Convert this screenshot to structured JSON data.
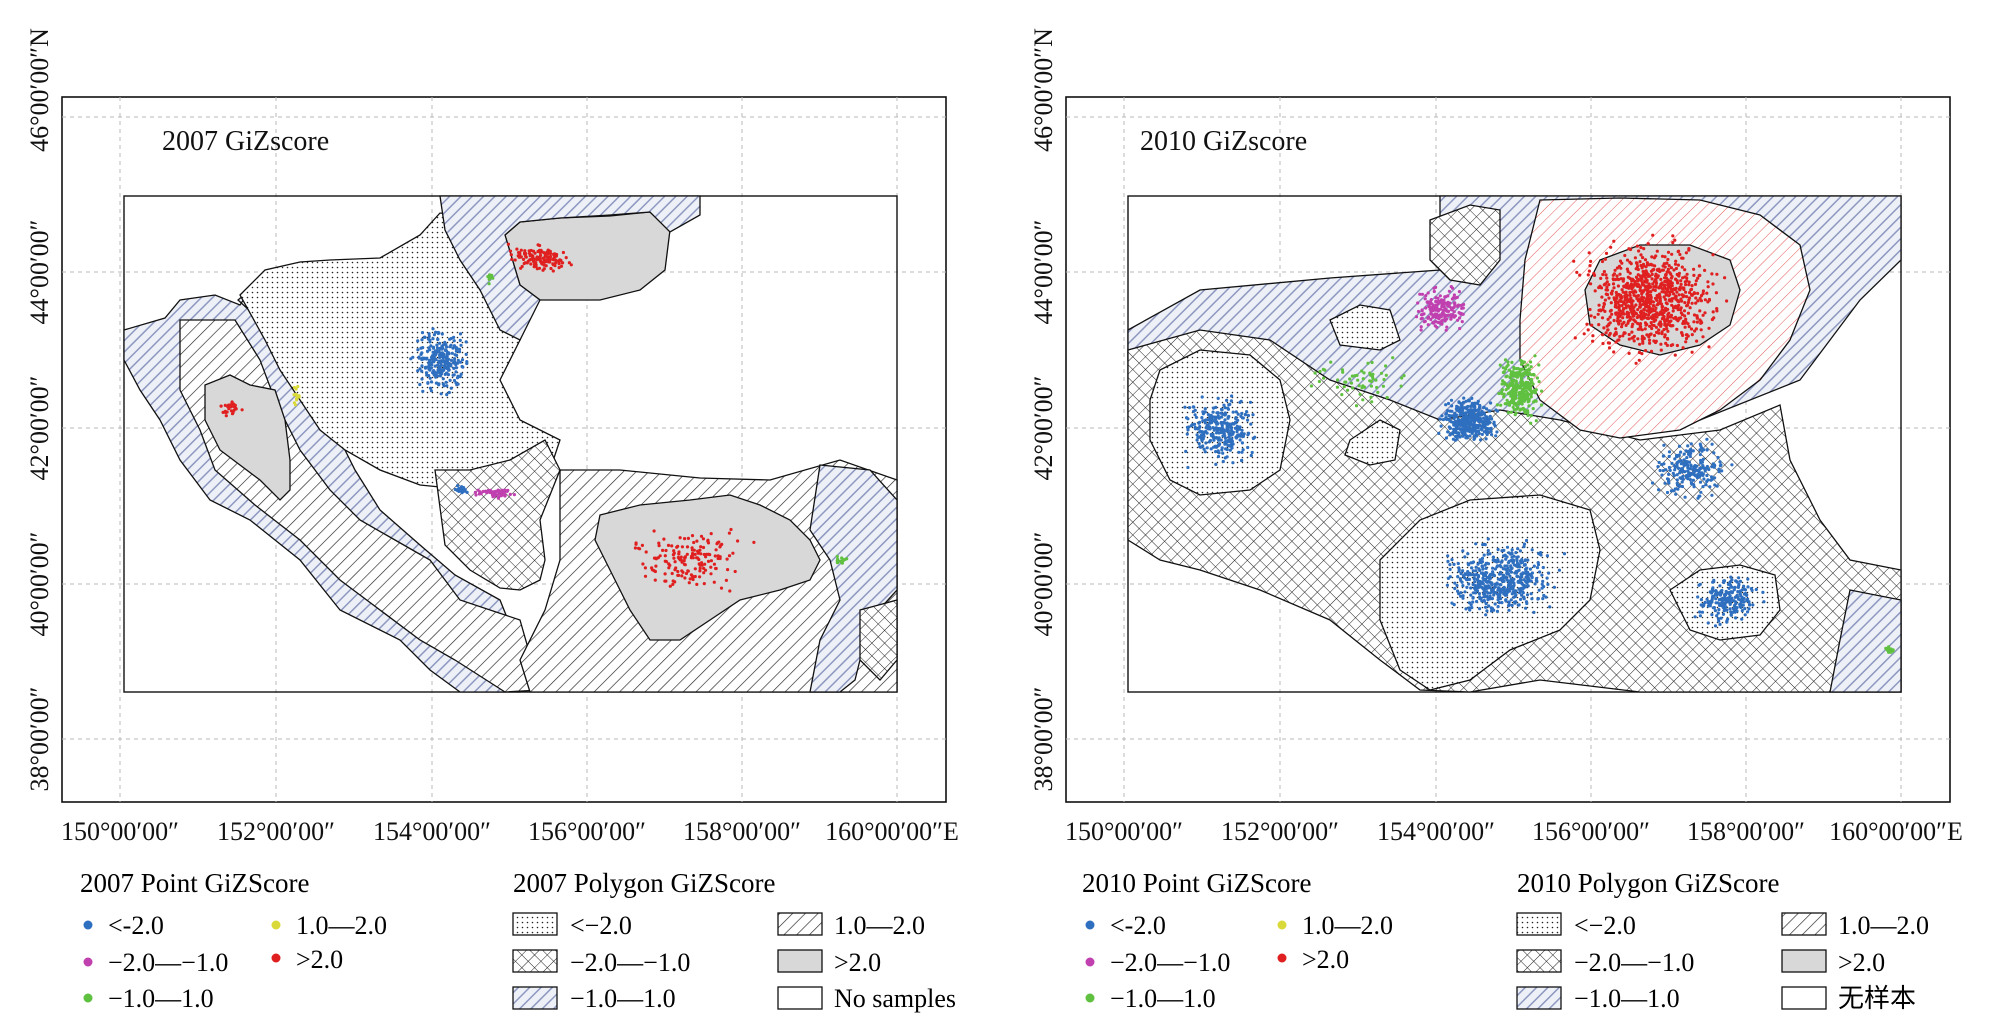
{
  "panels": [
    {
      "id": "2007",
      "title": "2007 GiZscore",
      "x_ticks": [
        "150°00′00″",
        "152°00′00″",
        "154°00′00″",
        "156°00′00″",
        "158°00′00″",
        "160°00′00″E"
      ],
      "y_ticks": [
        "46°00′00″N",
        "44°00′00″",
        "42°00′00″",
        "40°00′00″",
        "38°00′00″"
      ],
      "legend_point_title": "2007 Point GiZScore",
      "legend_point_items": [
        {
          "label": "<-2.0",
          "color": "#2f6fbf"
        },
        {
          "label": "1.0—2.0",
          "color": "#d9d93a"
        },
        {
          "label": "−2.0—−1.0",
          "color": "#c040b0"
        },
        {
          "label": ">2.0",
          "color": "#e02020"
        },
        {
          "label": "−1.0—1.0",
          "color": "#60c040"
        }
      ],
      "legend_polygon_title": "2007 Polygon GiZScore",
      "legend_polygon_items": [
        {
          "label": "<−2.0",
          "fill": "dots"
        },
        {
          "label": "1.0—2.0",
          "fill": "hatch"
        },
        {
          "label": "−2.0—−1.0",
          "fill": "cross"
        },
        {
          "label": ">2.0",
          "fill": "grey"
        },
        {
          "label": "−1.0—1.0",
          "fill": "blue-hatch"
        },
        {
          "label": "No samples",
          "fill": "none"
        }
      ]
    },
    {
      "id": "2010",
      "title": "2010 GiZscore",
      "x_ticks": [
        "150°00′00″",
        "152°00′00″",
        "154°00′00″",
        "156°00′00″",
        "158°00′00″",
        "160°00′00″E"
      ],
      "y_ticks": [
        "46°00′00″N",
        "44°00′00″",
        "42°00′00″",
        "40°00′00″",
        "38°00′00″"
      ],
      "legend_point_title": "2010 Point GiZScore",
      "legend_point_items": [
        {
          "label": "<-2.0",
          "color": "#2f6fbf"
        },
        {
          "label": "1.0—2.0",
          "color": "#d9d93a"
        },
        {
          "label": "−2.0—−1.0",
          "color": "#c040b0"
        },
        {
          "label": ">2.0",
          "color": "#e02020"
        },
        {
          "label": "−1.0—1.0",
          "color": "#60c040"
        }
      ],
      "legend_polygon_title": "2010 Polygon GiZScore",
      "legend_polygon_items": [
        {
          "label": "<−2.0",
          "fill": "dots"
        },
        {
          "label": "1.0—2.0",
          "fill": "hatch"
        },
        {
          "label": "−2.0—−1.0",
          "fill": "cross"
        },
        {
          "label": ">2.0",
          "fill": "grey"
        },
        {
          "label": "−1.0—1.0",
          "fill": "blue-hatch"
        },
        {
          "label": "无样本",
          "fill": "none"
        }
      ]
    }
  ],
  "colors": {
    "blue": "#2f6fbf",
    "magenta": "#c040b0",
    "green": "#60c040",
    "yellow": "#d9d93a",
    "red": "#e02020",
    "grey_fill": "#d8d8d8",
    "blue_hatch": "#9aa6c8"
  }
}
